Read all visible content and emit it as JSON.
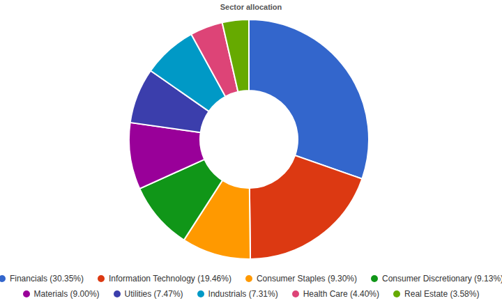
{
  "chart_data": {
    "type": "pie",
    "title": "Sector allocation",
    "categories": [
      "Financials (30.35%)",
      "Information Technology (19.46%)",
      "Consumer Staples (9.30%)",
      "Consumer Discretionary (9.13%)",
      "Materials (9.00%)",
      "Utilities (7.47%)",
      "Industrials (7.31%)",
      "Health Care (4.40%)",
      "Real Estate (3.58%)"
    ],
    "values": [
      30.35,
      19.46,
      9.3,
      9.13,
      9.0,
      7.47,
      7.31,
      4.4,
      3.58
    ],
    "colors": [
      "#3366cc",
      "#dc3912",
      "#ff9900",
      "#109618",
      "#990099",
      "#3b3eac",
      "#0099c6",
      "#dd4477",
      "#66aa00"
    ],
    "legend": "bottom"
  }
}
